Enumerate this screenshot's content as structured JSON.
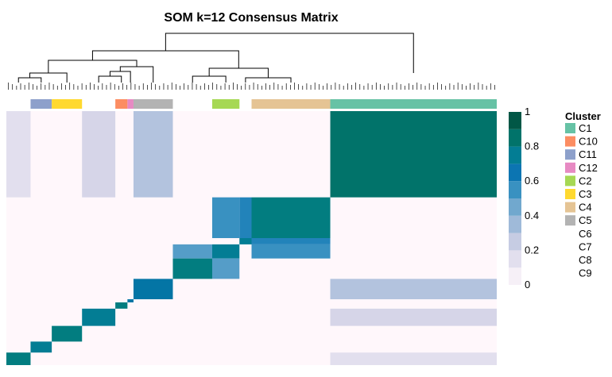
{
  "chart_data": {
    "type": "heatmap",
    "title": "SOM k=12 Consensus Matrix",
    "value_range": [
      0,
      1
    ],
    "colorbar": {
      "ticks": [
        "0",
        "0.2",
        "0.4",
        "0.6",
        "0.8",
        "1"
      ],
      "tick_values": [
        0,
        0.2,
        0.4,
        0.6,
        0.8,
        1
      ],
      "colors": [
        "#fff7fb",
        "#ece7f2",
        "#d0d1e6",
        "#a6bddb",
        "#74a9cf",
        "#3690c0",
        "#0570b0",
        "#02818a",
        "#016c59",
        "#014636"
      ]
    },
    "legend": {
      "title": "Cluster",
      "position": "right",
      "items": [
        {
          "name": "C1",
          "color": "#66c2a5"
        },
        {
          "name": "C10",
          "color": "#fc8d62"
        },
        {
          "name": "C11",
          "color": "#8da0cb"
        },
        {
          "name": "C12",
          "color": "#e78ac3"
        },
        {
          "name": "C2",
          "color": "#a6d854"
        },
        {
          "name": "C3",
          "color": "#ffd92f"
        },
        {
          "name": "C4",
          "color": "#e5c494"
        },
        {
          "name": "C5",
          "color": "#b3b3b3"
        },
        {
          "name": "C6",
          "color": ""
        },
        {
          "name": "C7",
          "color": ""
        },
        {
          "name": "C8",
          "color": ""
        },
        {
          "name": "C9",
          "color": ""
        }
      ]
    },
    "cluster_order": [
      "C9",
      "C11",
      "C3",
      "C8",
      "C10",
      "C12",
      "C5",
      "C7",
      "C2",
      "C6",
      "C4",
      "C1"
    ],
    "cluster_sizes": [
      8,
      7,
      10,
      11,
      4,
      2,
      13,
      13,
      9,
      4,
      26,
      55
    ],
    "blocks": [
      {
        "rows": "C1",
        "cols": "C1",
        "value": 0.85
      },
      {
        "rows": "C4",
        "cols": "C4",
        "value": 0.8
      },
      {
        "rows": "C4",
        "cols": "C2",
        "value": 0.55
      },
      {
        "rows": "C2",
        "cols": "C2",
        "value": 0.75
      },
      {
        "rows": "C2",
        "cols": "C7",
        "value": 0.5
      },
      {
        "rows": "C7",
        "cols": "C7",
        "value": 0.8
      },
      {
        "rows": "C6",
        "cols": "C6",
        "value": 0.75
      },
      {
        "rows": "C6",
        "cols": "C4",
        "value": 0.6
      },
      {
        "rows": "C5",
        "cols": "C5",
        "value": 0.7
      },
      {
        "rows": "C5",
        "cols": "C1",
        "value": 0.3
      },
      {
        "rows": "C10",
        "cols": "C10",
        "value": 0.8
      },
      {
        "rows": "C12",
        "cols": "C12",
        "value": 0.7
      },
      {
        "rows": "C8",
        "cols": "C8",
        "value": 0.75
      },
      {
        "rows": "C3",
        "cols": "C3",
        "value": 0.8
      },
      {
        "rows": "C11",
        "cols": "C11",
        "value": 0.75
      },
      {
        "rows": "C9",
        "cols": "C9",
        "value": 0.8
      },
      {
        "rows": "C9",
        "cols": "C1",
        "value": 0.15
      },
      {
        "rows": "C8",
        "cols": "C1",
        "value": 0.2
      }
    ]
  }
}
